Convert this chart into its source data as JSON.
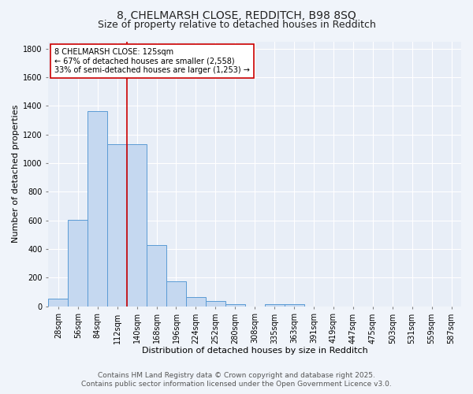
{
  "title_line1": "8, CHELMARSH CLOSE, REDDITCH, B98 8SQ",
  "title_line2": "Size of property relative to detached houses in Redditch",
  "xlabel": "Distribution of detached houses by size in Redditch",
  "ylabel": "Number of detached properties",
  "bar_labels": [
    "28sqm",
    "56sqm",
    "84sqm",
    "112sqm",
    "140sqm",
    "168sqm",
    "196sqm",
    "224sqm",
    "252sqm",
    "280sqm",
    "308sqm",
    "335sqm",
    "363sqm",
    "391sqm",
    "419sqm",
    "447sqm",
    "475sqm",
    "503sqm",
    "531sqm",
    "559sqm",
    "587sqm"
  ],
  "bar_values": [
    55,
    605,
    1365,
    1130,
    1130,
    430,
    172,
    65,
    38,
    15,
    0,
    15,
    15,
    0,
    0,
    0,
    0,
    0,
    0,
    0,
    0
  ],
  "bar_color": "#c5d8f0",
  "bar_edge_color": "#5b9bd5",
  "vline_color": "#cc0000",
  "annotation_text": "8 CHELMARSH CLOSE: 125sqm\n← 67% of detached houses are smaller (2,558)\n33% of semi-detached houses are larger (1,253) →",
  "annotation_box_color": "#ffffff",
  "annotation_box_edge": "#cc0000",
  "ylim": [
    0,
    1850
  ],
  "yticks": [
    0,
    200,
    400,
    600,
    800,
    1000,
    1200,
    1400,
    1600,
    1800
  ],
  "fig_bg_color": "#f0f4fa",
  "plot_bg_color": "#e8eef7",
  "footer_line1": "Contains HM Land Registry data © Crown copyright and database right 2025.",
  "footer_line2": "Contains public sector information licensed under the Open Government Licence v3.0.",
  "title_fontsize": 10,
  "subtitle_fontsize": 9,
  "axis_label_fontsize": 8,
  "tick_fontsize": 7,
  "annotation_fontsize": 7,
  "footer_fontsize": 6.5
}
